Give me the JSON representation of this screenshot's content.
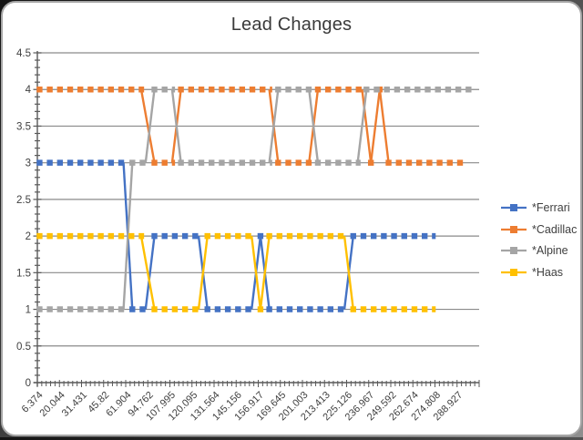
{
  "title": "Lead Changes",
  "colors": {
    "ferrari": "#4472C4",
    "cadillac": "#ED7D31",
    "alpine": "#A5A5A5",
    "haas": "#FFC000",
    "gridline": "#8a8a8a",
    "axis": "#595959",
    "text": "#404040"
  },
  "legend": {
    "position": "right",
    "items": [
      {
        "label": "*Ferrari",
        "color": "#4472C4"
      },
      {
        "label": "*Cadillac",
        "color": "#ED7D31"
      },
      {
        "label": "*Alpine",
        "color": "#A5A5A5"
      },
      {
        "label": "*Haas",
        "color": "#FFC000"
      }
    ]
  },
  "chart_data": {
    "type": "line",
    "title": "Lead Changes",
    "line_style": "square-dot-dash",
    "grid": true,
    "legend_position": "right",
    "x_axis": {
      "n_categories": 100,
      "label_interval": 5,
      "labels": [
        "6.374",
        "20.044",
        "31.431",
        "45.82",
        "61.904",
        "94.762",
        "107.995",
        "120.095",
        "131.564",
        "145.156",
        "156.917",
        "169.645",
        "201.003",
        "213.413",
        "225.126",
        "236.967",
        "249.592",
        "262.674",
        "274.808",
        "288.927"
      ],
      "label_rotation_deg": 45
    },
    "y_axis": {
      "min": 0,
      "max": 4.5,
      "major_unit": 0.5,
      "minor_unit": 0.1,
      "tick_labels": [
        "0",
        "0.5",
        "1",
        "1.5",
        "2",
        "2.5",
        "3",
        "3.5",
        "4",
        "4.5"
      ]
    },
    "series": [
      {
        "name": "*Ferrari",
        "color": "#4472C4",
        "runs": [
          {
            "value": 3,
            "from": 1,
            "to": 20
          },
          {
            "value": 1,
            "from": 22,
            "to": 25
          },
          {
            "value": 2,
            "from": 27,
            "to": 37
          },
          {
            "value": 1,
            "from": 39,
            "to": 49
          },
          {
            "value": 2,
            "from": 51,
            "to": 51
          },
          {
            "value": 1,
            "from": 53,
            "to": 70
          },
          {
            "value": 2,
            "from": 72,
            "to": 90
          }
        ]
      },
      {
        "name": "*Cadillac",
        "color": "#ED7D31",
        "runs": [
          {
            "value": 4,
            "from": 1,
            "to": 24
          },
          {
            "value": 3,
            "from": 27,
            "to": 31
          },
          {
            "value": 4,
            "from": 33,
            "to": 53
          },
          {
            "value": 3,
            "from": 55,
            "to": 62
          },
          {
            "value": 4,
            "from": 64,
            "to": 74
          },
          {
            "value": 3,
            "from": 76,
            "to": 76
          },
          {
            "value": 4,
            "from": 78,
            "to": 78
          },
          {
            "value": 3,
            "from": 80,
            "to": 97
          }
        ]
      },
      {
        "name": "*Alpine",
        "color": "#A5A5A5",
        "runs": [
          {
            "value": 1,
            "from": 1,
            "to": 20
          },
          {
            "value": 3,
            "from": 22,
            "to": 25
          },
          {
            "value": 4,
            "from": 27,
            "to": 31
          },
          {
            "value": 3,
            "from": 33,
            "to": 53
          },
          {
            "value": 4,
            "from": 55,
            "to": 62
          },
          {
            "value": 3,
            "from": 64,
            "to": 73
          },
          {
            "value": 4,
            "from": 75,
            "to": 99
          }
        ]
      },
      {
        "name": "*Haas",
        "color": "#FFC000",
        "runs": [
          {
            "value": 2,
            "from": 1,
            "to": 24
          },
          {
            "value": 1,
            "from": 27,
            "to": 37
          },
          {
            "value": 2,
            "from": 39,
            "to": 49
          },
          {
            "value": 1,
            "from": 51,
            "to": 51
          },
          {
            "value": 2,
            "from": 53,
            "to": 70
          },
          {
            "value": 1,
            "from": 72,
            "to": 90
          }
        ]
      }
    ]
  }
}
